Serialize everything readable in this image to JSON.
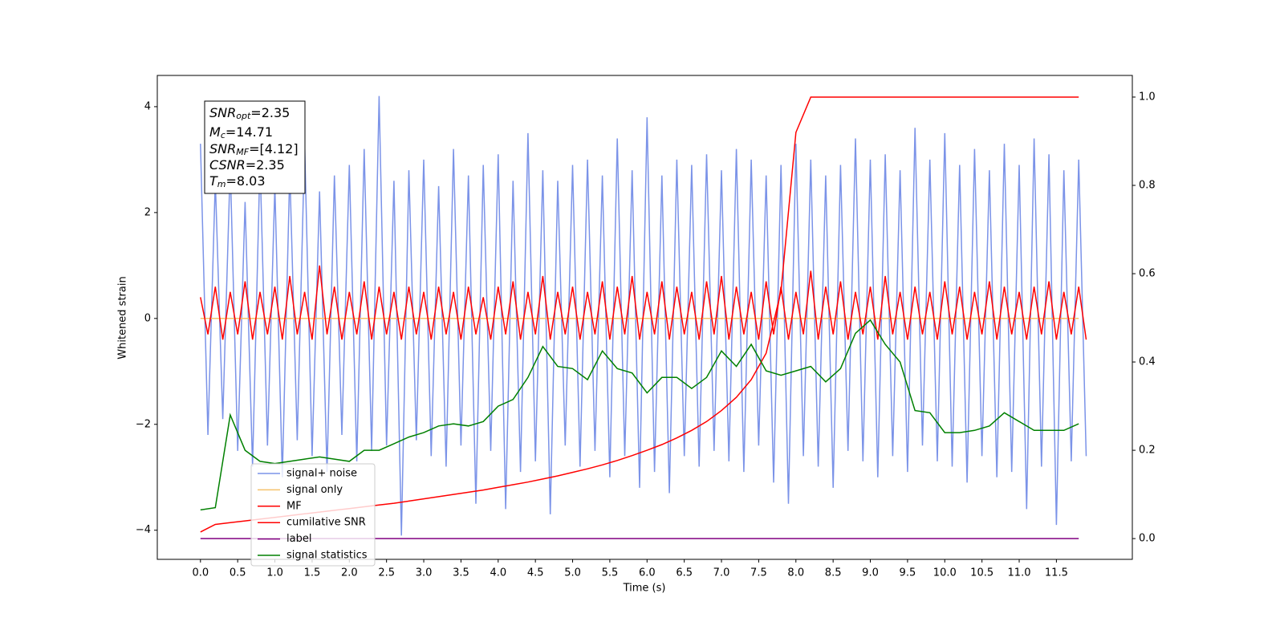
{
  "chart_data": {
    "type": "line",
    "xlabel": "Time (s)",
    "ylabel": "Whitened strain",
    "xlim": [
      -0.58,
      12.52
    ],
    "ylim": [
      -4.55,
      4.59
    ],
    "y2lim": [
      -0.047,
      1.049
    ],
    "xticks": [
      {
        "value": 0,
        "label": "0.0"
      },
      0.5,
      {
        "value": 1,
        "label": "1.0"
      },
      1.5,
      {
        "value": 2,
        "label": "2.0"
      },
      2.5,
      {
        "value": 3,
        "label": "3.0"
      },
      3.5,
      {
        "value": 4,
        "label": "4.0"
      },
      4.5,
      {
        "value": 5,
        "label": "5.0"
      },
      5.5,
      {
        "value": 6,
        "label": "6.0"
      },
      6.5,
      {
        "value": 7,
        "label": "7.0"
      },
      7.5,
      {
        "value": 8,
        "label": "8.0"
      },
      8.5,
      {
        "value": 9,
        "label": "9.0"
      },
      9.5,
      {
        "value": 10,
        "label": "10.0"
      },
      10.5,
      {
        "value": 11,
        "label": "11.0"
      },
      11.5
    ],
    "yticks": [
      {
        "value": -4,
        "label": "−4"
      },
      {
        "value": -2,
        "label": "−2"
      },
      0,
      2,
      4
    ],
    "y2ticks": [
      {
        "value": 0,
        "label": "0.0"
      },
      0.2,
      0.4,
      0.6,
      0.8,
      {
        "value": 1,
        "label": "1.0"
      }
    ],
    "legend": "lower left",
    "annotations": [
      {
        "symbol": "SNR",
        "subscript": "opt",
        "text": "=2.35"
      },
      {
        "symbol": "M",
        "subscript": "c",
        "text": "=14.71"
      },
      {
        "symbol": "SNR",
        "subscript": "MF",
        "text": "=[4.12]"
      },
      {
        "symbol": "CSNR",
        "text": "=2.35"
      },
      {
        "symbol": "T",
        "subscript": "m",
        "text": "=8.03"
      }
    ],
    "x": [
      0,
      0.2,
      0.4,
      0.6,
      0.8,
      1,
      1.2,
      1.4,
      1.6,
      1.8,
      2,
      2.2,
      2.4,
      2.6,
      2.8,
      3,
      3.2,
      3.4,
      3.6,
      3.8,
      4,
      4.2,
      4.4,
      4.6,
      4.8,
      5,
      5.2,
      5.4,
      5.6,
      5.8,
      6,
      6.2,
      6.4,
      6.6,
      6.8,
      7,
      7.2,
      7.4,
      7.6,
      7.8,
      8,
      8.2,
      8.4,
      8.6,
      8.8,
      9,
      9.2,
      9.4,
      9.6,
      9.8,
      10,
      10.2,
      10.4,
      10.6,
      10.8,
      11,
      11.2,
      11.4,
      11.6,
      11.8
    ],
    "series": [
      {
        "name": "signal+ noise",
        "color": "#7b93e8",
        "axis": "y",
        "x": [
          0,
          0.1,
          0.2,
          0.3,
          0.4,
          0.5,
          0.6,
          0.7,
          0.8,
          0.9,
          1,
          1.1,
          1.2,
          1.3,
          1.4,
          1.5,
          1.6,
          1.7,
          1.8,
          1.9,
          2,
          2.1,
          2.2,
          2.3,
          2.4,
          2.5,
          2.6,
          2.7,
          2.8,
          2.9,
          3,
          3.1,
          3.2,
          3.3,
          3.4,
          3.5,
          3.6,
          3.7,
          3.8,
          3.9,
          4,
          4.1,
          4.2,
          4.3,
          4.4,
          4.5,
          4.6,
          4.7,
          4.8,
          4.9,
          5,
          5.1,
          5.2,
          5.3,
          5.4,
          5.5,
          5.6,
          5.7,
          5.8,
          5.9,
          6,
          6.1,
          6.2,
          6.3,
          6.4,
          6.5,
          6.6,
          6.7,
          6.8,
          6.9,
          7,
          7.1,
          7.2,
          7.3,
          7.4,
          7.5,
          7.6,
          7.7,
          7.8,
          7.9,
          8,
          8.1,
          8.2,
          8.3,
          8.4,
          8.5,
          8.6,
          8.7,
          8.8,
          8.9,
          9,
          9.1,
          9.2,
          9.3,
          9.4,
          9.5,
          9.6,
          9.7,
          9.8,
          9.9,
          10,
          10.1,
          10.2,
          10.3,
          10.4,
          10.5,
          10.6,
          10.7,
          10.8,
          10.9,
          11,
          11.1,
          11.2,
          11.3,
          11.4,
          11.5,
          11.6,
          11.7,
          11.8,
          11.9
        ],
        "values": [
          3.3,
          -2.2,
          2.6,
          -1.9,
          2.9,
          -2.5,
          2.2,
          -2.8,
          3.0,
          -2.4,
          2.5,
          -3.0,
          2.8,
          -2.3,
          3.3,
          -2.6,
          2.4,
          -2.9,
          2.7,
          -2.2,
          2.9,
          -2.7,
          3.2,
          -2.5,
          4.2,
          -2.4,
          2.6,
          -4.1,
          2.8,
          -2.3,
          3.0,
          -2.6,
          2.5,
          -2.8,
          3.2,
          -2.4,
          2.7,
          -3.5,
          2.9,
          -2.5,
          3.1,
          -3.6,
          2.6,
          -2.9,
          3.5,
          -2.7,
          2.8,
          -3.7,
          2.6,
          -2.4,
          2.9,
          -2.8,
          3.0,
          -2.5,
          2.7,
          -3.0,
          3.4,
          -2.6,
          2.8,
          -3.2,
          3.8,
          -2.9,
          2.7,
          -3.3,
          3.0,
          -2.6,
          2.9,
          -2.8,
          3.1,
          -2.5,
          2.8,
          -2.7,
          3.2,
          -2.9,
          3.0,
          -2.4,
          2.7,
          -3.1,
          2.9,
          -3.5,
          3.3,
          -2.6,
          3.0,
          -2.8,
          2.7,
          -3.2,
          2.9,
          -2.5,
          3.4,
          -2.7,
          3.0,
          -3.0,
          3.1,
          -2.6,
          2.8,
          -2.9,
          3.6,
          -2.4,
          3.0,
          -2.7,
          3.5,
          -2.8,
          2.9,
          -3.1,
          3.2,
          -2.6,
          2.8,
          -3.0,
          3.3,
          -2.9,
          2.9,
          -3.6,
          3.4,
          -2.8,
          3.1,
          -3.9,
          2.8,
          -2.7,
          3.0,
          -2.6
        ]
      },
      {
        "name": "signal only",
        "color": "#f5c26b",
        "axis": "y",
        "values": [
          0,
          0,
          0,
          0,
          0,
          0,
          0,
          0,
          0,
          0,
          0,
          0,
          0,
          0,
          0,
          0,
          0,
          0,
          0,
          0,
          0,
          0,
          0,
          0,
          0,
          0,
          0,
          0,
          0,
          0,
          0,
          0,
          0,
          0,
          0,
          0,
          0,
          0,
          0,
          0,
          0,
          0,
          0,
          0,
          0,
          0,
          0,
          0,
          0,
          0,
          0,
          0,
          0,
          0,
          0,
          0,
          0,
          0,
          0,
          0
        ]
      },
      {
        "name": "MF",
        "color": "#ff0000",
        "axis": "y",
        "x": [
          0,
          0.1,
          0.2,
          0.3,
          0.4,
          0.5,
          0.6,
          0.7,
          0.8,
          0.9,
          1,
          1.1,
          1.2,
          1.3,
          1.4,
          1.5,
          1.6,
          1.7,
          1.8,
          1.9,
          2,
          2.1,
          2.2,
          2.3,
          2.4,
          2.5,
          2.6,
          2.7,
          2.8,
          2.9,
          3,
          3.1,
          3.2,
          3.3,
          3.4,
          3.5,
          3.6,
          3.7,
          3.8,
          3.9,
          4,
          4.1,
          4.2,
          4.3,
          4.4,
          4.5,
          4.6,
          4.7,
          4.8,
          4.9,
          5,
          5.1,
          5.2,
          5.3,
          5.4,
          5.5,
          5.6,
          5.7,
          5.8,
          5.9,
          6,
          6.1,
          6.2,
          6.3,
          6.4,
          6.5,
          6.6,
          6.7,
          6.8,
          6.9,
          7,
          7.1,
          7.2,
          7.3,
          7.4,
          7.5,
          7.6,
          7.7,
          7.8,
          7.9,
          8,
          8.1,
          8.2,
          8.3,
          8.4,
          8.5,
          8.6,
          8.7,
          8.8,
          8.9,
          9,
          9.1,
          9.2,
          9.3,
          9.4,
          9.5,
          9.6,
          9.7,
          9.8,
          9.9,
          10,
          10.1,
          10.2,
          10.3,
          10.4,
          10.5,
          10.6,
          10.7,
          10.8,
          10.9,
          11,
          11.1,
          11.2,
          11.3,
          11.4,
          11.5,
          11.6,
          11.7,
          11.8,
          11.9
        ],
        "values": [
          0.4,
          -0.3,
          0.6,
          -0.4,
          0.5,
          -0.3,
          0.7,
          -0.4,
          0.5,
          -0.3,
          0.6,
          -0.4,
          0.8,
          -0.3,
          0.5,
          -0.4,
          1.0,
          -0.3,
          0.6,
          -0.4,
          0.5,
          -0.3,
          0.7,
          -0.4,
          0.6,
          -0.3,
          0.5,
          -0.4,
          0.6,
          -0.3,
          0.5,
          -0.4,
          0.6,
          -0.3,
          0.5,
          -0.4,
          0.6,
          -0.3,
          0.4,
          -0.4,
          0.6,
          -0.3,
          0.7,
          -0.4,
          0.5,
          -0.3,
          0.8,
          -0.4,
          0.5,
          -0.3,
          0.6,
          -0.4,
          0.5,
          -0.3,
          0.7,
          -0.4,
          0.6,
          -0.3,
          0.8,
          -0.4,
          0.5,
          -0.3,
          0.7,
          -0.4,
          0.6,
          -0.3,
          0.5,
          -0.4,
          0.7,
          -0.3,
          0.8,
          -0.4,
          0.6,
          -0.3,
          0.5,
          -0.4,
          0.7,
          -0.3,
          0.6,
          -0.4,
          0.5,
          -0.3,
          0.9,
          -0.4,
          0.6,
          -0.3,
          0.7,
          -0.4,
          0.5,
          -0.3,
          0.6,
          -0.4,
          0.8,
          -0.3,
          0.5,
          -0.4,
          0.6,
          -0.3,
          0.5,
          -0.4,
          0.7,
          -0.3,
          0.6,
          -0.4,
          0.5,
          -0.3,
          0.7,
          -0.4,
          0.6,
          -0.3,
          0.5,
          -0.4,
          0.6,
          -0.3,
          0.7,
          -0.4,
          0.5,
          -0.3,
          0.6,
          -0.4
        ]
      },
      {
        "name": "cumilative SNR",
        "color": "#ff0000",
        "axis": "y2",
        "values": [
          0.015,
          0.032,
          0.036,
          0.04,
          0.044,
          0.048,
          0.052,
          0.056,
          0.06,
          0.064,
          0.068,
          0.072,
          0.076,
          0.08,
          0.085,
          0.09,
          0.095,
          0.1,
          0.105,
          0.11,
          0.116,
          0.122,
          0.128,
          0.135,
          0.142,
          0.15,
          0.158,
          0.167,
          0.177,
          0.188,
          0.2,
          0.213,
          0.228,
          0.245,
          0.265,
          0.29,
          0.32,
          0.36,
          0.42,
          0.56,
          0.92,
          1.0,
          1.0,
          1.0,
          1.0,
          1.0,
          1.0,
          1.0,
          1.0,
          1.0,
          1.0,
          1.0,
          1.0,
          1.0,
          1.0,
          1.0,
          1.0,
          1.0,
          1.0,
          1.0
        ]
      },
      {
        "name": "label",
        "color": "#800080",
        "axis": "y2",
        "values": [
          0,
          0,
          0,
          0,
          0,
          0,
          0,
          0,
          0,
          0,
          0,
          0,
          0,
          0,
          0,
          0,
          0,
          0,
          0,
          0,
          0,
          0,
          0,
          0,
          0,
          0,
          0,
          0,
          0,
          0,
          0,
          0,
          0,
          0,
          0,
          0,
          0,
          0,
          0,
          0,
          0,
          0,
          0,
          0,
          0,
          0,
          0,
          0,
          0,
          0,
          0,
          0,
          0,
          0,
          0,
          0,
          0,
          0,
          0,
          0
        ]
      },
      {
        "name": "signal statistics",
        "color": "#008000",
        "axis": "y2",
        "values": [
          0.065,
          0.07,
          0.28,
          0.2,
          0.175,
          0.17,
          0.175,
          0.18,
          0.185,
          0.18,
          0.175,
          0.2,
          0.2,
          0.215,
          0.23,
          0.24,
          0.255,
          0.26,
          0.255,
          0.265,
          0.3,
          0.315,
          0.365,
          0.435,
          0.39,
          0.385,
          0.36,
          0.425,
          0.385,
          0.375,
          0.33,
          0.365,
          0.365,
          0.34,
          0.365,
          0.425,
          0.39,
          0.44,
          0.38,
          0.37,
          0.38,
          0.39,
          0.355,
          0.385,
          0.465,
          0.495,
          0.44,
          0.4,
          0.29,
          0.285,
          0.24,
          0.24,
          0.245,
          0.255,
          0.285,
          0.265,
          0.245,
          0.245,
          0.245,
          0.26
        ]
      }
    ]
  }
}
